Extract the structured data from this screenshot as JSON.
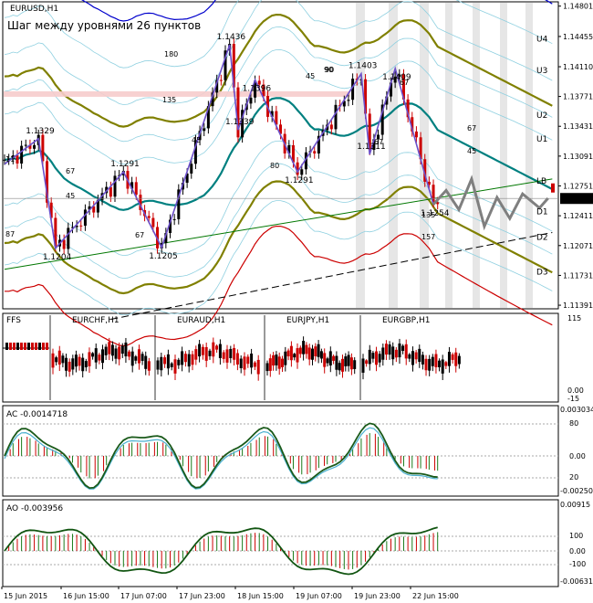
{
  "chart_data": {
    "type": "line",
    "symbol": "EURUSD,H1",
    "subtitle": "Шаг между уровнями 26 пунктов",
    "price_axis": {
      "ylim": [
        1.1135,
        1.1485
      ],
      "ticks": [
        "1.14801",
        "1.14455",
        "1.14110",
        "1.13771",
        "1.13431",
        "1.13091",
        "1.12751",
        "1.12411",
        "1.12071",
        "1.11731",
        "1.11391"
      ],
      "current": "1.12608"
    },
    "band_labels": [
      {
        "text": "U4",
        "y": 1.1444
      },
      {
        "text": "U3",
        "y": 1.1408
      },
      {
        "text": "U2",
        "y": 1.1357
      },
      {
        "text": "U1",
        "y": 1.133
      },
      {
        "text": "LB",
        "y": 1.1282
      },
      {
        "text": "D1",
        "y": 1.1247
      },
      {
        "text": "D2",
        "y": 1.1218
      },
      {
        "text": "D3",
        "y": 1.1178
      }
    ],
    "pivot_labels": [
      {
        "text": "1.1329",
        "i": 8,
        "y": 1.1329
      },
      {
        "text": "1.1204",
        "i": 12,
        "y": 1.1204
      },
      {
        "text": "1.1291",
        "i": 28,
        "y": 1.1291
      },
      {
        "text": "1.1205",
        "i": 37,
        "y": 1.1205
      },
      {
        "text": "1.1436",
        "i": 53,
        "y": 1.1436
      },
      {
        "text": "1.1396",
        "i": 59,
        "y": 1.1396
      },
      {
        "text": "1.1339",
        "i": 55,
        "y": 1.1339
      },
      {
        "text": "1.1291",
        "i": 69,
        "y": 1.1291
      },
      {
        "text": "1.1403",
        "i": 84,
        "y": 1.1403
      },
      {
        "text": "1.1409",
        "i": 92,
        "y": 1.1409
      },
      {
        "text": "1.1311",
        "i": 86,
        "y": 1.1311
      },
      {
        "text": "1.1254",
        "i": 101,
        "y": 1.1254
      }
    ],
    "fib_labels": [
      "180",
      "135",
      "45",
      "67",
      "45",
      "67",
      "90",
      "45",
      "80",
      "90",
      "67",
      "67",
      "67",
      "45",
      "135",
      "157",
      "87",
      "11"
    ],
    "zigzag": [
      [
        0,
        1.13
      ],
      [
        8,
        1.1329
      ],
      [
        12,
        1.1204
      ],
      [
        28,
        1.1291
      ],
      [
        37,
        1.1205
      ],
      [
        53,
        1.1436
      ],
      [
        55,
        1.1339
      ],
      [
        59,
        1.1396
      ],
      [
        69,
        1.1291
      ],
      [
        84,
        1.1403
      ],
      [
        86,
        1.1311
      ],
      [
        92,
        1.1409
      ],
      [
        101,
        1.1254
      ]
    ],
    "projection": [
      [
        101,
        1.1254
      ],
      [
        104,
        1.127
      ],
      [
        107,
        1.1248
      ],
      [
        110,
        1.1283
      ],
      [
        113,
        1.1229
      ],
      [
        116,
        1.1262
      ],
      [
        119,
        1.1238
      ],
      [
        122,
        1.1266
      ],
      [
        126,
        1.125
      ],
      [
        128,
        1.1261
      ]
    ],
    "n_bars": 103,
    "x_axis_labels": [
      "15 Jun 2015",
      "16 Jun 15:00",
      "17 Jun 07:00",
      "17 Jun 23:00",
      "18 Jun 15:00",
      "19 Jun 07:00",
      "19 Jun 23:00",
      "22 Jun 15:00"
    ],
    "panels": [
      {
        "name": "FFS",
        "labels": [
          "EURCHF,H1",
          "EURAUD,H1",
          "EURJPY,H1",
          "EURGBP,H1"
        ],
        "scale_top": "115",
        "scale_bottom": "0.00",
        "scale_bottom2": "-15"
      },
      {
        "name": "AC",
        "value": "-0.0014718",
        "scale": [
          "0.003034",
          "80",
          "0.00",
          "20",
          "-0.002502"
        ]
      },
      {
        "name": "AO",
        "value": "-0.003956",
        "scale": [
          "0.00915",
          "100",
          "0.00",
          "-100",
          "-0.00631"
        ]
      }
    ]
  },
  "colors": {
    "up_candle": "#000000",
    "down_candle": "#cc0000",
    "zigzag": "#6b4fc9",
    "projection": "#7f7f7f",
    "teal": "#008080",
    "olive": "#808000",
    "blue": "#0000cc",
    "red": "#cc0000",
    "lightblue": "#8fd0e0",
    "shade": "#e6e6e6"
  }
}
